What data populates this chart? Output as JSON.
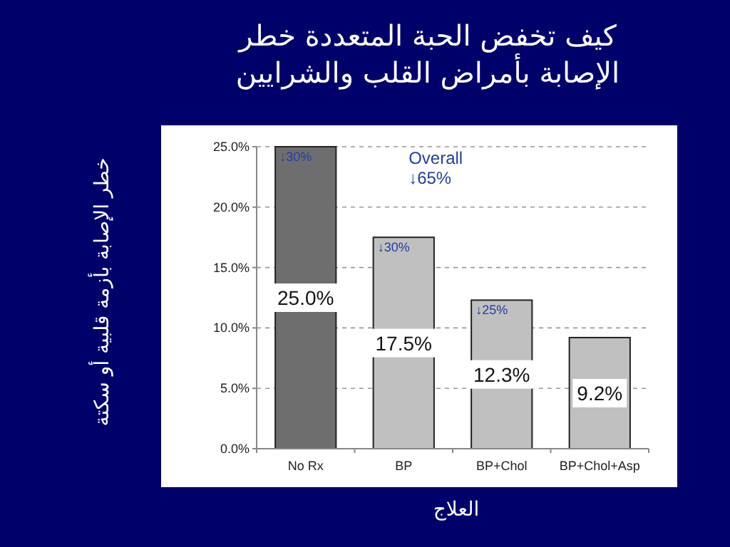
{
  "chart_data": {
    "type": "bar",
    "title": "كيف تخفض  الحبة المتعددة خطر الإصابة بأمراض القلب والشرايين",
    "xlabel": "العلاج",
    "ylabel": "خطر الإصابة بأزمة قلبية أو سكتة",
    "categories": [
      "No Rx",
      "BP",
      "BP+Chol",
      "BP+Chol+Asp"
    ],
    "values": [
      25.0,
      17.5,
      12.3,
      9.2
    ],
    "colors": [
      "#6e6e6e",
      "#c0c0c0",
      "#c0c0c0",
      "#c0c0c0"
    ],
    "value_labels": [
      "25.0%",
      "17.5%",
      "12.3%",
      "9.2%"
    ],
    "ylim": [
      0,
      25
    ],
    "yticks": [
      {
        "value": 0,
        "label": "0.0%"
      },
      {
        "value": 5,
        "label": "5.0%"
      },
      {
        "value": 10,
        "label": "10.0%"
      },
      {
        "value": 15,
        "label": "15.0%"
      },
      {
        "value": 20,
        "label": "20.0%"
      },
      {
        "value": 25,
        "label": "25.0%"
      }
    ],
    "grid": "y",
    "annotations": [
      "↓30%",
      "↓30%",
      "↓25%",
      "Overall ↓65%"
    ]
  }
}
